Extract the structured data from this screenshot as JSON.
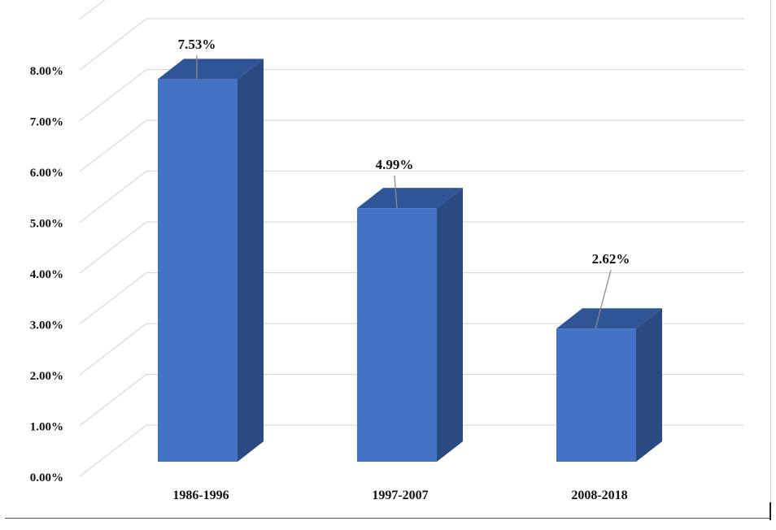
{
  "chart_data": {
    "type": "bar",
    "style": "3d-column",
    "categories": [
      "1986-1996",
      "1997-2007",
      "2008-2018"
    ],
    "values": [
      7.53,
      4.99,
      2.62
    ],
    "data_labels": [
      "7.53%",
      "4.99%",
      "2.62%"
    ],
    "y_ticks": [
      0,
      1,
      2,
      3,
      4,
      5,
      6,
      7,
      8
    ],
    "y_tick_labels": [
      "0.00%",
      "1.00%",
      "2.00%",
      "3.00%",
      "4.00%",
      "5.00%",
      "6.00%",
      "7.00%",
      "8.00%"
    ],
    "ylim": [
      0,
      8
    ],
    "grid": true,
    "legend": "none",
    "title": "",
    "xlabel": "",
    "ylabel": "",
    "colors": {
      "bar_front": "#4472c4",
      "bar_side": "#2b4a82",
      "bar_top": "#2f5597",
      "grid": "#d9d9d9",
      "leader_line": "#8c8c8c"
    }
  }
}
